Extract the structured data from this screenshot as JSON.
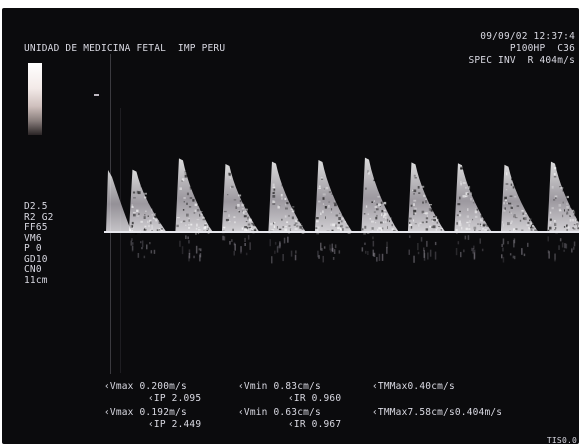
{
  "header": {
    "title": "UNIDAD DE MEDICINA FETAL  IMP PERU",
    "datetime": "09/09/02 12:37:4",
    "line2": "P100HP  C36",
    "line3": "SPEC INV  R 404m/s"
  },
  "settings": [
    "D2.5",
    "R2 G2",
    "FF65",
    "VM6",
    "P 0",
    "GD10",
    "CN0",
    "11cm"
  ],
  "measurements": {
    "row1": {
      "vmax": "‹Vmax 0.200m/s",
      "vmin": "‹Vmin 0.83cm/s",
      "tmmax": "‹TMMax0.40cm/s",
      "ip": "‹IP 2.095",
      "ir": "‹IR 0.960"
    },
    "row2": {
      "vmax": "‹Vmax 0.192m/s",
      "vmin": "‹Vmin 0.63cm/s",
      "tmmax": "‹TMMax7.58cm/s0.404m/s",
      "ip": "‹IP 2.449",
      "ir": "‹IR 0.967"
    }
  },
  "footer": {
    "corner": "TIS0.0"
  },
  "colors": {
    "screen_bg": "#0b0b0d",
    "text": "#d9d9e2",
    "baseline": "#e8e8ee",
    "waveform": "#f0eef2"
  },
  "waveform": {
    "peaks": 10,
    "relative_peak_heights": [
      0.78,
      0.92,
      0.85,
      0.88,
      0.9,
      0.93,
      0.87,
      0.86,
      0.84,
      0.88
    ]
  }
}
